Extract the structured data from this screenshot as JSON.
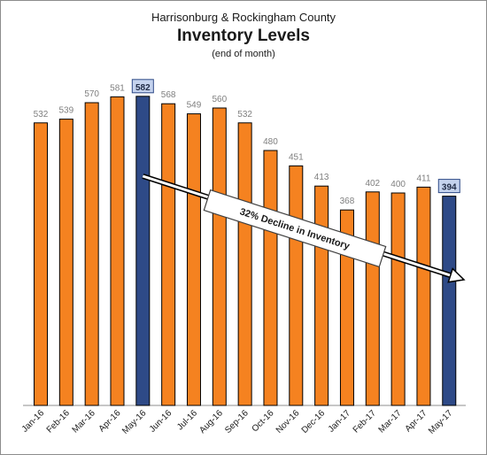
{
  "chart_data": {
    "type": "bar",
    "title": "Inventory Levels",
    "supertitle": "Harrisonburg & Rockingham County",
    "subtitle": "(end of month)",
    "xlabel": "",
    "ylabel": "",
    "categories": [
      "Jan-16",
      "Feb-16",
      "Mar-16",
      "Apr-16",
      "May-16",
      "Jun-16",
      "Jul-16",
      "Aug-16",
      "Sep-16",
      "Oct-16",
      "Nov-16",
      "Dec-16",
      "Jan-17",
      "Feb-17",
      "Mar-17",
      "Apr-17",
      "May-17"
    ],
    "values": [
      532,
      539,
      570,
      581,
      582,
      568,
      549,
      560,
      532,
      480,
      451,
      413,
      368,
      402,
      400,
      411,
      394
    ],
    "highlighted": [
      "May-16",
      "May-17"
    ],
    "ylim": [
      0,
      600
    ],
    "grid": false,
    "colors": {
      "bar": "#f58220",
      "highlight": "#2e4a87",
      "outline": "#000000",
      "label_box": "#c5d3ee"
    },
    "annotation": {
      "text": "32% Decline in Inventory",
      "from": "May-16",
      "to": "May-17"
    }
  }
}
